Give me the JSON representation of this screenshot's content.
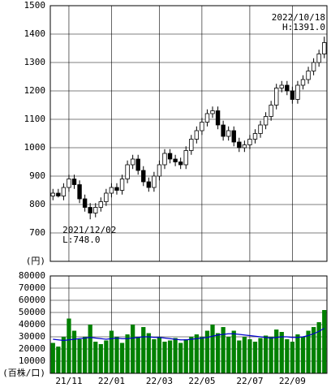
{
  "chart_data": [
    {
      "type": "candlestick",
      "open": [
        830,
        840,
        830,
        860,
        890,
        870,
        820,
        790,
        770,
        790,
        810,
        840,
        860,
        850,
        890,
        940,
        960,
        920,
        880,
        860,
        900,
        940,
        980,
        960,
        950,
        940,
        990,
        1030,
        1060,
        1090,
        1120,
        1130,
        1080,
        1040,
        1060,
        1020,
        1000,
        1010,
        1030,
        1050,
        1080,
        1110,
        1150,
        1210,
        1220,
        1200,
        1170,
        1220,
        1240,
        1270,
        1300,
        1330
      ],
      "high": [
        855,
        855,
        875,
        905,
        905,
        885,
        835,
        805,
        805,
        825,
        855,
        875,
        875,
        905,
        955,
        975,
        975,
        935,
        895,
        915,
        955,
        995,
        995,
        975,
        965,
        1005,
        1045,
        1075,
        1105,
        1135,
        1145,
        1145,
        1095,
        1075,
        1075,
        1035,
        1025,
        1045,
        1065,
        1095,
        1125,
        1165,
        1225,
        1235,
        1235,
        1215,
        1235,
        1255,
        1285,
        1315,
        1345,
        1391
      ],
      "low": [
        815,
        825,
        815,
        845,
        855,
        805,
        775,
        748,
        755,
        775,
        795,
        825,
        835,
        835,
        875,
        925,
        905,
        865,
        845,
        845,
        885,
        925,
        945,
        935,
        925,
        925,
        975,
        1015,
        1045,
        1075,
        1105,
        1065,
        1025,
        1025,
        1005,
        985,
        985,
        995,
        1015,
        1035,
        1065,
        1095,
        1135,
        1195,
        1185,
        1155,
        1155,
        1205,
        1225,
        1255,
        1285,
        1315
      ],
      "close": [
        840,
        830,
        860,
        890,
        870,
        820,
        790,
        770,
        790,
        810,
        840,
        860,
        850,
        890,
        940,
        960,
        920,
        880,
        860,
        900,
        940,
        980,
        960,
        950,
        940,
        990,
        1030,
        1060,
        1090,
        1120,
        1130,
        1080,
        1040,
        1060,
        1020,
        1000,
        1010,
        1030,
        1050,
        1080,
        1110,
        1150,
        1210,
        1220,
        1200,
        1170,
        1220,
        1240,
        1270,
        1300,
        1330,
        1370
      ],
      "ylim": [
        600,
        1500
      ],
      "yticks": [
        {
          "value": 600,
          "label": "(円)"
        },
        700,
        800,
        900,
        1000,
        1100,
        1200,
        1300,
        1400,
        1500
      ],
      "annotations": [
        {
          "lines": [
            "2022/10/18",
            "H:1391.0"
          ],
          "index": 51
        },
        {
          "lines": [
            "2021/12/02",
            "L:748.0"
          ],
          "index": 7
        }
      ]
    },
    {
      "type": "bar",
      "color": "#008000",
      "values": [
        25000,
        22000,
        30000,
        45000,
        35000,
        28000,
        30000,
        40000,
        26000,
        24000,
        27000,
        35000,
        30000,
        25000,
        32000,
        40000,
        30000,
        38000,
        33000,
        28000,
        30000,
        26000,
        27000,
        29000,
        25000,
        28000,
        30000,
        32000,
        30000,
        35000,
        40000,
        33000,
        38000,
        30000,
        35000,
        27000,
        30000,
        28000,
        26000,
        29000,
        31000,
        30000,
        36000,
        34000,
        28000,
        26000,
        32000,
        30000,
        35000,
        38000,
        42000,
        52000
      ],
      "ma": {
        "color": "#0000cc",
        "values": [
          28000,
          27500,
          27000,
          27500,
          28000,
          28500,
          29000,
          29500,
          29000,
          28500,
          28000,
          28500,
          29000,
          28500,
          28500,
          29000,
          29500,
          30000,
          30000,
          29500,
          29500,
          29000,
          28500,
          28000,
          27500,
          27500,
          28000,
          28500,
          29000,
          29500,
          30500,
          31500,
          32000,
          32500,
          32500,
          32000,
          31500,
          31000,
          30500,
          30000,
          29500,
          29000,
          29500,
          30000,
          30000,
          29500,
          29500,
          30000,
          31000,
          32500,
          34500,
          37000
        ]
      },
      "ylim": [
        0,
        80000
      ],
      "yticks": [
        {
          "value": 0,
          "label": "(百株/口)"
        },
        10000,
        20000,
        30000,
        40000,
        50000,
        60000,
        70000,
        80000
      ],
      "xticks": [
        {
          "value": 3,
          "label": "21/11"
        },
        {
          "value": 11,
          "label": "22/01"
        },
        {
          "value": 20,
          "label": "22/03"
        },
        {
          "value": 28,
          "label": "22/05"
        },
        {
          "value": 37,
          "label": "22/07"
        },
        {
          "value": 45,
          "label": "22/09"
        }
      ]
    }
  ]
}
